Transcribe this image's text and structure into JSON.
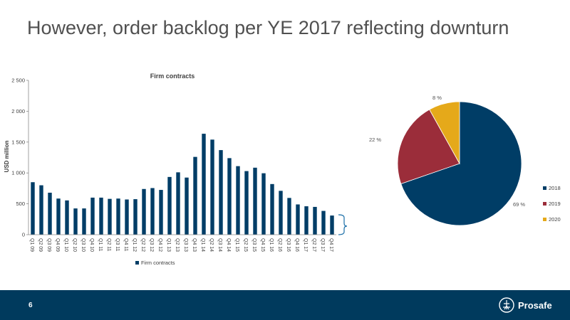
{
  "slide": {
    "title": "However, order backlog per YE 2017 reflecting downturn",
    "page_number": "6",
    "brand": "Prosafe"
  },
  "colors": {
    "navy": "#003d66",
    "red": "#9b2d3a",
    "gold": "#e5a91a",
    "footer": "#003a5d",
    "bracket": "#1c6fa8"
  },
  "chart_data": [
    {
      "type": "bar",
      "title": "Firm contracts",
      "ylabel": "USD million",
      "ylim": [
        0,
        2500
      ],
      "yticks": [
        0,
        500,
        1000,
        1500,
        2000,
        2500
      ],
      "ytick_labels": [
        "0",
        "500",
        "1 000",
        "1 500",
        "2 000",
        "2 500"
      ],
      "categories": [
        "Q1 09",
        "Q2 09",
        "Q3 09",
        "Q4 09",
        "Q1 10",
        "Q2 10",
        "Q3 10",
        "Q4 10",
        "Q1 11",
        "Q2 11",
        "Q3 11",
        "Q4 11",
        "Q1 12",
        "Q2 12",
        "Q3 12",
        "Q4 12",
        "Q1 13",
        "Q2 13",
        "Q3 13",
        "Q4 13",
        "Q1 14",
        "Q2 14",
        "Q3 14",
        "Q4 14",
        "Q1 15",
        "Q2 15",
        "Q3 15",
        "Q4 15",
        "Q1 16",
        "Q2 16",
        "Q3 16",
        "Q4 16",
        "Q1 17",
        "Q2 17",
        "Q3 17",
        "Q4 17"
      ],
      "series": [
        {
          "name": "Firm contracts",
          "values": [
            850,
            800,
            680,
            585,
            555,
            425,
            425,
            600,
            600,
            580,
            585,
            570,
            575,
            740,
            755,
            725,
            935,
            1010,
            925,
            1260,
            1635,
            1540,
            1370,
            1240,
            1110,
            1030,
            1085,
            995,
            820,
            710,
            595,
            490,
            460,
            450,
            385,
            310
          ]
        }
      ],
      "legend": "bottom"
    },
    {
      "type": "pie",
      "labels": [
        "2018",
        "2019",
        "2020"
      ],
      "values": [
        69,
        22,
        8
      ],
      "value_labels": [
        "69 %",
        "22 %",
        "8 %"
      ],
      "legend": "right"
    }
  ]
}
